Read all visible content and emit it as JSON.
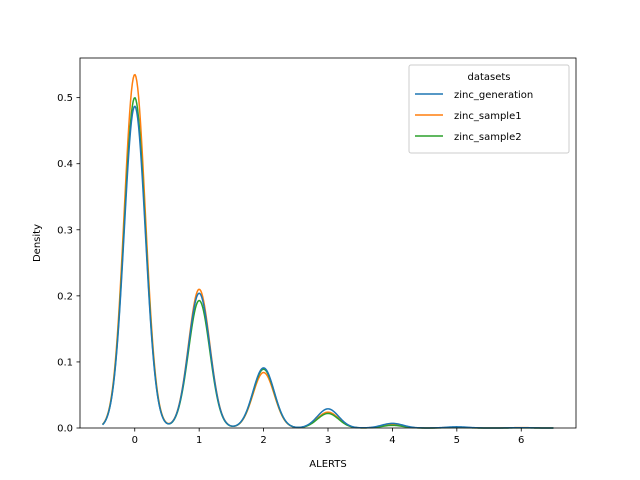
{
  "chart_data": {
    "type": "line",
    "title": "",
    "xlabel": "ALERTS",
    "ylabel": "Density",
    "xlim": [
      -0.85,
      6.85
    ],
    "ylim": [
      0,
      0.56
    ],
    "xticks": [
      0,
      1,
      2,
      3,
      4,
      5,
      6
    ],
    "yticks": [
      0.0,
      0.1,
      0.2,
      0.3,
      0.4,
      0.5
    ],
    "ytick_labels": [
      "0.0",
      "0.1",
      "0.2",
      "0.3",
      "0.4",
      "0.5"
    ],
    "grid": false,
    "legend": {
      "title": "datasets",
      "placement": "top-right"
    },
    "x_range": [
      -0.5,
      6.5
    ],
    "series": [
      {
        "name": "zinc_generation",
        "color": "#1f77b4",
        "peaks": [
          [
            0,
            0.487
          ],
          [
            1,
            0.204
          ],
          [
            2,
            0.091
          ],
          [
            3,
            0.029
          ],
          [
            4,
            0.007
          ],
          [
            5,
            0.0018
          ],
          [
            6,
            0.0004
          ]
        ]
      },
      {
        "name": "zinc_sample1",
        "color": "#ff7f0e",
        "peaks": [
          [
            0,
            0.535
          ],
          [
            1,
            0.21
          ],
          [
            2,
            0.084
          ],
          [
            3,
            0.024
          ],
          [
            4,
            0.005
          ],
          [
            5,
            0.0012
          ],
          [
            6,
            0.0006
          ]
        ]
      },
      {
        "name": "zinc_sample2",
        "color": "#2ca02c",
        "peaks": [
          [
            0,
            0.5
          ],
          [
            1,
            0.193
          ],
          [
            2,
            0.089
          ],
          [
            3,
            0.022
          ],
          [
            4,
            0.004
          ],
          [
            5,
            0.0008
          ],
          [
            6,
            0.0002
          ]
        ]
      }
    ]
  }
}
